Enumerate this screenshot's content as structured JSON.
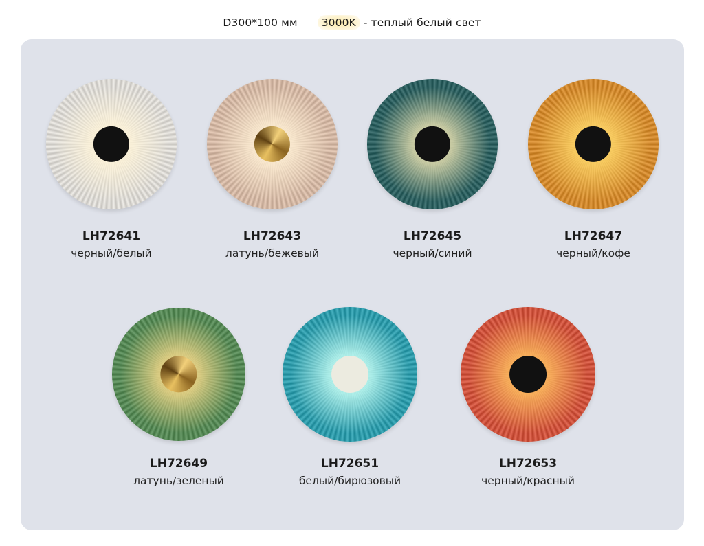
{
  "header": {
    "dimensions": "D300*100 мм",
    "temperature": "3000K",
    "description": "- теплый белый свет",
    "highlight_color": "#fbe9a8"
  },
  "panel_color": "#dfe2ea",
  "products": [
    {
      "code": "LH72641",
      "finish": "черный/белый",
      "body_color": "#ece9e3",
      "glow_color": "#fff4d8",
      "center": "black"
    },
    {
      "code": "LH72643",
      "finish": "латунь/бежевый",
      "body_color": "#e2c1aa",
      "glow_color": "#fff0d5",
      "center": "brass"
    },
    {
      "code": "LH72645",
      "finish": "черный/синий",
      "body_color": "#1e5a5a",
      "glow_color": "#e8e0b0",
      "center": "black"
    },
    {
      "code": "LH72647",
      "finish": "черный/кофе",
      "body_color": "#e08a1e",
      "glow_color": "#ffd86a",
      "center": "black"
    },
    {
      "code": "LH72649",
      "finish": "латунь/зеленый",
      "body_color": "#4e8a4e",
      "glow_color": "#f6d98a",
      "center": "brass"
    },
    {
      "code": "LH72651",
      "finish": "белый/бирюзовый",
      "body_color": "#1fa0b2",
      "glow_color": "#c8fff5",
      "center": "cream"
    },
    {
      "code": "LH72653",
      "finish": "черный/красный",
      "body_color": "#dc4a30",
      "glow_color": "#ffc060",
      "center": "black"
    }
  ]
}
